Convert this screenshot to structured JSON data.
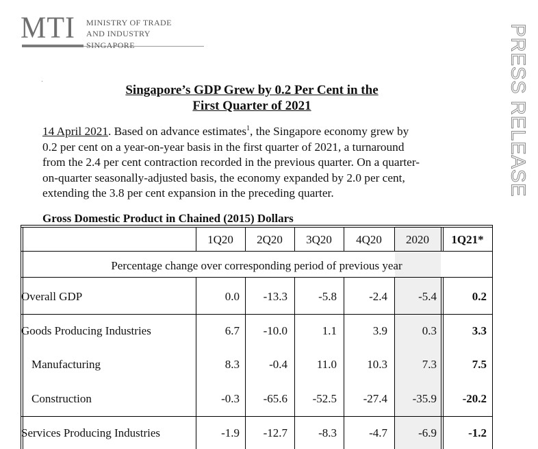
{
  "logo": {
    "mark": "MTI",
    "line1": "MINISTRY OF TRADE",
    "line2": "AND INDUSTRY",
    "line3": "SINGAPORE"
  },
  "side_label": "PRESS RELEASE",
  "title": {
    "line1": "Singapore’s GDP Grew by 0.2 Per Cent in the",
    "line2": "First Quarter of 2021"
  },
  "paragraph": {
    "date": "14 April 2021",
    "l1_after_date": ". Based on advance estimates",
    "footnote": "1",
    "l1_end": ", the Singapore economy grew by",
    "l2": "0.2 per cent on a year-on-year basis in the first quarter of 2021, a turnaround",
    "l3": "from the 2.4 per cent contraction recorded in the previous quarter. On a quarter-",
    "l4": "on-quarter seasonally-adjusted basis, the economy expanded by 2.0 per cent,",
    "l5": "extending the 3.8 per cent expansion in the preceding quarter."
  },
  "table": {
    "title": "Gross Domestic Product in Chained (2015) Dollars",
    "headers": [
      "1Q20",
      "2Q20",
      "3Q20",
      "4Q20",
      "2020",
      "1Q21*"
    ],
    "subheader": "Percentage change over corresponding period of previous year",
    "rows": [
      {
        "label": "Overall GDP",
        "values": [
          "0.0",
          "-13.3",
          "-5.8",
          "-2.4",
          "-5.4",
          "0.2"
        ]
      },
      {
        "label": "Goods Producing Industries",
        "values": [
          "6.7",
          "-10.0",
          "1.1",
          "3.9",
          "0.3",
          "3.3"
        ]
      },
      {
        "label": "Manufacturing",
        "values": [
          "8.3",
          "-0.4",
          "11.0",
          "10.3",
          "7.3",
          "7.5"
        ]
      },
      {
        "label": "Construction",
        "values": [
          "-0.3",
          "-65.6",
          "-52.5",
          "-27.4",
          "-35.9",
          "-20.2"
        ]
      },
      {
        "label": "Services Producing Industries",
        "values": [
          "-1.9",
          "-12.7",
          "-8.3",
          "-4.7",
          "-6.9",
          "-1.2"
        ]
      }
    ]
  }
}
